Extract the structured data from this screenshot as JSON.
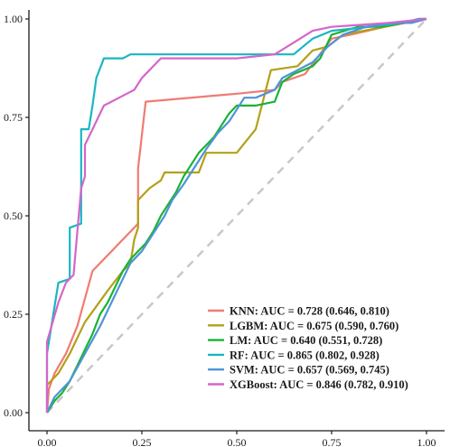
{
  "chart_data": {
    "type": "line",
    "title": "",
    "xlabel": "",
    "ylabel": "",
    "xlim": [
      0,
      1
    ],
    "ylim": [
      0,
      1
    ],
    "x_ticks": [
      0,
      0.25,
      0.5,
      0.75,
      1
    ],
    "y_ticks": [
      0,
      0.25,
      0.5,
      0.75,
      1
    ],
    "x_tick_labels": [
      "0.00",
      "0.25",
      "0.50",
      "0.75",
      "1.00"
    ],
    "y_tick_labels": [
      "0.00",
      "0.25",
      "0.50",
      "0.75",
      "1.00"
    ],
    "grid": false,
    "legend_position": "bottom-right",
    "reference_line": {
      "style": "dashed",
      "color": "#c8c8c8",
      "points": [
        [
          0,
          0
        ],
        [
          1,
          1
        ]
      ]
    },
    "series": [
      {
        "name": "KNN: AUC = 0.728 (0.646, 0.810)",
        "color": "#f07b72",
        "points": [
          [
            0,
            0
          ],
          [
            0.005,
            0.06
          ],
          [
            0.02,
            0.1
          ],
          [
            0.05,
            0.15
          ],
          [
            0.08,
            0.22
          ],
          [
            0.12,
            0.36
          ],
          [
            0.18,
            0.42
          ],
          [
            0.24,
            0.48
          ],
          [
            0.24,
            0.62
          ],
          [
            0.26,
            0.79
          ],
          [
            0.5,
            0.81
          ],
          [
            0.6,
            0.82
          ],
          [
            0.62,
            0.84
          ],
          [
            0.68,
            0.86
          ],
          [
            0.75,
            0.95
          ],
          [
            0.8,
            0.96
          ],
          [
            0.98,
            1
          ],
          [
            1,
            1
          ]
        ]
      },
      {
        "name": "LGBM: AUC = 0.675 (0.590, 0.760)",
        "color": "#b3a019",
        "points": [
          [
            0,
            0
          ],
          [
            0,
            0.07
          ],
          [
            0.03,
            0.1
          ],
          [
            0.06,
            0.15
          ],
          [
            0.1,
            0.23
          ],
          [
            0.16,
            0.31
          ],
          [
            0.2,
            0.36
          ],
          [
            0.22,
            0.38
          ],
          [
            0.23,
            0.44
          ],
          [
            0.24,
            0.47
          ],
          [
            0.24,
            0.54
          ],
          [
            0.27,
            0.57
          ],
          [
            0.3,
            0.59
          ],
          [
            0.31,
            0.61
          ],
          [
            0.4,
            0.61
          ],
          [
            0.42,
            0.66
          ],
          [
            0.5,
            0.66
          ],
          [
            0.55,
            0.72
          ],
          [
            0.59,
            0.87
          ],
          [
            0.66,
            0.88
          ],
          [
            0.7,
            0.92
          ],
          [
            0.74,
            0.93
          ],
          [
            0.78,
            0.96
          ],
          [
            1,
            1
          ]
        ]
      },
      {
        "name": "LM: AUC = 0.640 (0.551, 0.728)",
        "color": "#19b334",
        "points": [
          [
            0,
            0
          ],
          [
            0.02,
            0.03
          ],
          [
            0.04,
            0.05
          ],
          [
            0.06,
            0.08
          ],
          [
            0.08,
            0.12
          ],
          [
            0.1,
            0.16
          ],
          [
            0.12,
            0.2
          ],
          [
            0.14,
            0.25
          ],
          [
            0.16,
            0.28
          ],
          [
            0.18,
            0.32
          ],
          [
            0.2,
            0.36
          ],
          [
            0.22,
            0.39
          ],
          [
            0.24,
            0.41
          ],
          [
            0.26,
            0.43
          ],
          [
            0.28,
            0.46
          ],
          [
            0.3,
            0.5
          ],
          [
            0.32,
            0.53
          ],
          [
            0.34,
            0.56
          ],
          [
            0.36,
            0.6
          ],
          [
            0.38,
            0.63
          ],
          [
            0.4,
            0.66
          ],
          [
            0.42,
            0.68
          ],
          [
            0.44,
            0.7
          ],
          [
            0.46,
            0.73
          ],
          [
            0.48,
            0.76
          ],
          [
            0.5,
            0.78
          ],
          [
            0.55,
            0.78
          ],
          [
            0.6,
            0.79
          ],
          [
            0.62,
            0.84
          ],
          [
            0.65,
            0.86
          ],
          [
            0.7,
            0.88
          ],
          [
            0.72,
            0.9
          ],
          [
            0.75,
            0.96
          ],
          [
            0.82,
            0.98
          ],
          [
            0.88,
            0.98
          ],
          [
            0.94,
            0.99
          ],
          [
            0.98,
            1
          ],
          [
            1,
            1
          ]
        ]
      },
      {
        "name": "RF: AUC = 0.865 (0.802, 0.928)",
        "color": "#1ab6c2",
        "points": [
          [
            0,
            0
          ],
          [
            0,
            0.15
          ],
          [
            0.03,
            0.33
          ],
          [
            0.06,
            0.34
          ],
          [
            0.06,
            0.47
          ],
          [
            0.09,
            0.48
          ],
          [
            0.09,
            0.72
          ],
          [
            0.11,
            0.72
          ],
          [
            0.12,
            0.78
          ],
          [
            0.13,
            0.85
          ],
          [
            0.15,
            0.9
          ],
          [
            0.2,
            0.9
          ],
          [
            0.22,
            0.91
          ],
          [
            0.65,
            0.91
          ],
          [
            0.7,
            0.95
          ],
          [
            0.75,
            0.97
          ],
          [
            0.85,
            0.98
          ],
          [
            0.94,
            0.99
          ],
          [
            0.98,
            1
          ],
          [
            1,
            1
          ]
        ]
      },
      {
        "name": "SVM: AUC = 0.657 (0.569, 0.745)",
        "color": "#4f93d6",
        "points": [
          [
            0,
            0
          ],
          [
            0.02,
            0.04
          ],
          [
            0.06,
            0.08
          ],
          [
            0.1,
            0.15
          ],
          [
            0.14,
            0.22
          ],
          [
            0.18,
            0.3
          ],
          [
            0.22,
            0.38
          ],
          [
            0.25,
            0.41
          ],
          [
            0.27,
            0.44
          ],
          [
            0.29,
            0.47
          ],
          [
            0.31,
            0.5
          ],
          [
            0.33,
            0.54
          ],
          [
            0.36,
            0.58
          ],
          [
            0.38,
            0.61
          ],
          [
            0.4,
            0.64
          ],
          [
            0.42,
            0.67
          ],
          [
            0.45,
            0.71
          ],
          [
            0.48,
            0.74
          ],
          [
            0.5,
            0.77
          ],
          [
            0.52,
            0.8
          ],
          [
            0.55,
            0.8
          ],
          [
            0.6,
            0.82
          ],
          [
            0.62,
            0.85
          ],
          [
            0.66,
            0.87
          ],
          [
            0.7,
            0.89
          ],
          [
            0.74,
            0.93
          ],
          [
            0.78,
            0.96
          ],
          [
            0.84,
            0.98
          ],
          [
            0.9,
            0.99
          ],
          [
            0.96,
            0.99
          ],
          [
            1,
            1
          ]
        ]
      },
      {
        "name": "XGBoost: AUC = 0.846 (0.782, 0.910)",
        "color": "#d466c9",
        "points": [
          [
            0,
            0
          ],
          [
            0,
            0.18
          ],
          [
            0.03,
            0.28
          ],
          [
            0.05,
            0.33
          ],
          [
            0.07,
            0.35
          ],
          [
            0.08,
            0.46
          ],
          [
            0.09,
            0.57
          ],
          [
            0.1,
            0.6
          ],
          [
            0.1,
            0.68
          ],
          [
            0.12,
            0.72
          ],
          [
            0.13,
            0.74
          ],
          [
            0.15,
            0.78
          ],
          [
            0.17,
            0.79
          ],
          [
            0.19,
            0.8
          ],
          [
            0.21,
            0.81
          ],
          [
            0.23,
            0.82
          ],
          [
            0.25,
            0.85
          ],
          [
            0.27,
            0.87
          ],
          [
            0.3,
            0.9
          ],
          [
            0.5,
            0.9
          ],
          [
            0.6,
            0.91
          ],
          [
            0.65,
            0.94
          ],
          [
            0.7,
            0.97
          ],
          [
            0.75,
            0.98
          ],
          [
            0.9,
            0.99
          ],
          [
            1,
            1
          ]
        ]
      }
    ]
  }
}
